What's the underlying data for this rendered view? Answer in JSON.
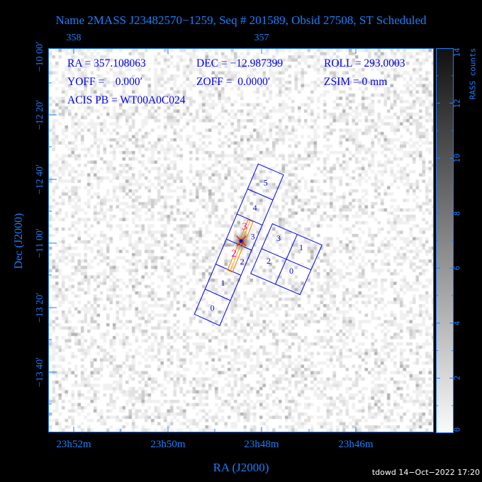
{
  "title": "Name 2MASS J23482570−1259, Seq # 201589, Obsid 27508, ST Scheduled",
  "info": {
    "ra": "RA = 357.108063",
    "dec": "DEC = −12.987399",
    "roll": "ROLL = 293.0003",
    "yoff": "YOFF =    0.000′",
    "zoff": "ZOFF =  0.0000′",
    "zsim": "ZSIM = 0 mm",
    "acis_pb": "ACIS PB = WT00A0C024"
  },
  "chart_data": {
    "type": "heatmap",
    "xlabel": "RA (J2000)",
    "ylabel": "Dec (J2000)",
    "x_ticks": [
      "23h52m",
      "23h50m",
      "23h48m",
      "23h46m"
    ],
    "top_ticks": [
      "358",
      "357"
    ],
    "y_ticks": [
      "−10 00′",
      "−12 20′",
      "−12 40′",
      "−11 00′",
      "−13 20′",
      "−13 40′"
    ],
    "colorbar": {
      "label": "RASS counts",
      "range": [
        0,
        14
      ],
      "ticks": [
        "0",
        "2",
        "4",
        "6",
        "8",
        "10",
        "12",
        "14"
      ],
      "colormap": "grayscale"
    },
    "acis_s_chips": [
      "0",
      "1",
      "2",
      "3",
      "4",
      "5"
    ],
    "acis_i_chips": [
      "3",
      "1",
      "2",
      "0"
    ],
    "source_markers": [
      "3",
      "2"
    ]
  },
  "colors": {
    "axis": "#1a7fff",
    "chips": "#0000ee",
    "slit": "#ff8c00",
    "markers": "#ff1493",
    "source": "#ff0000"
  },
  "footer": "tdowd 14−Oct−2022 17:20"
}
